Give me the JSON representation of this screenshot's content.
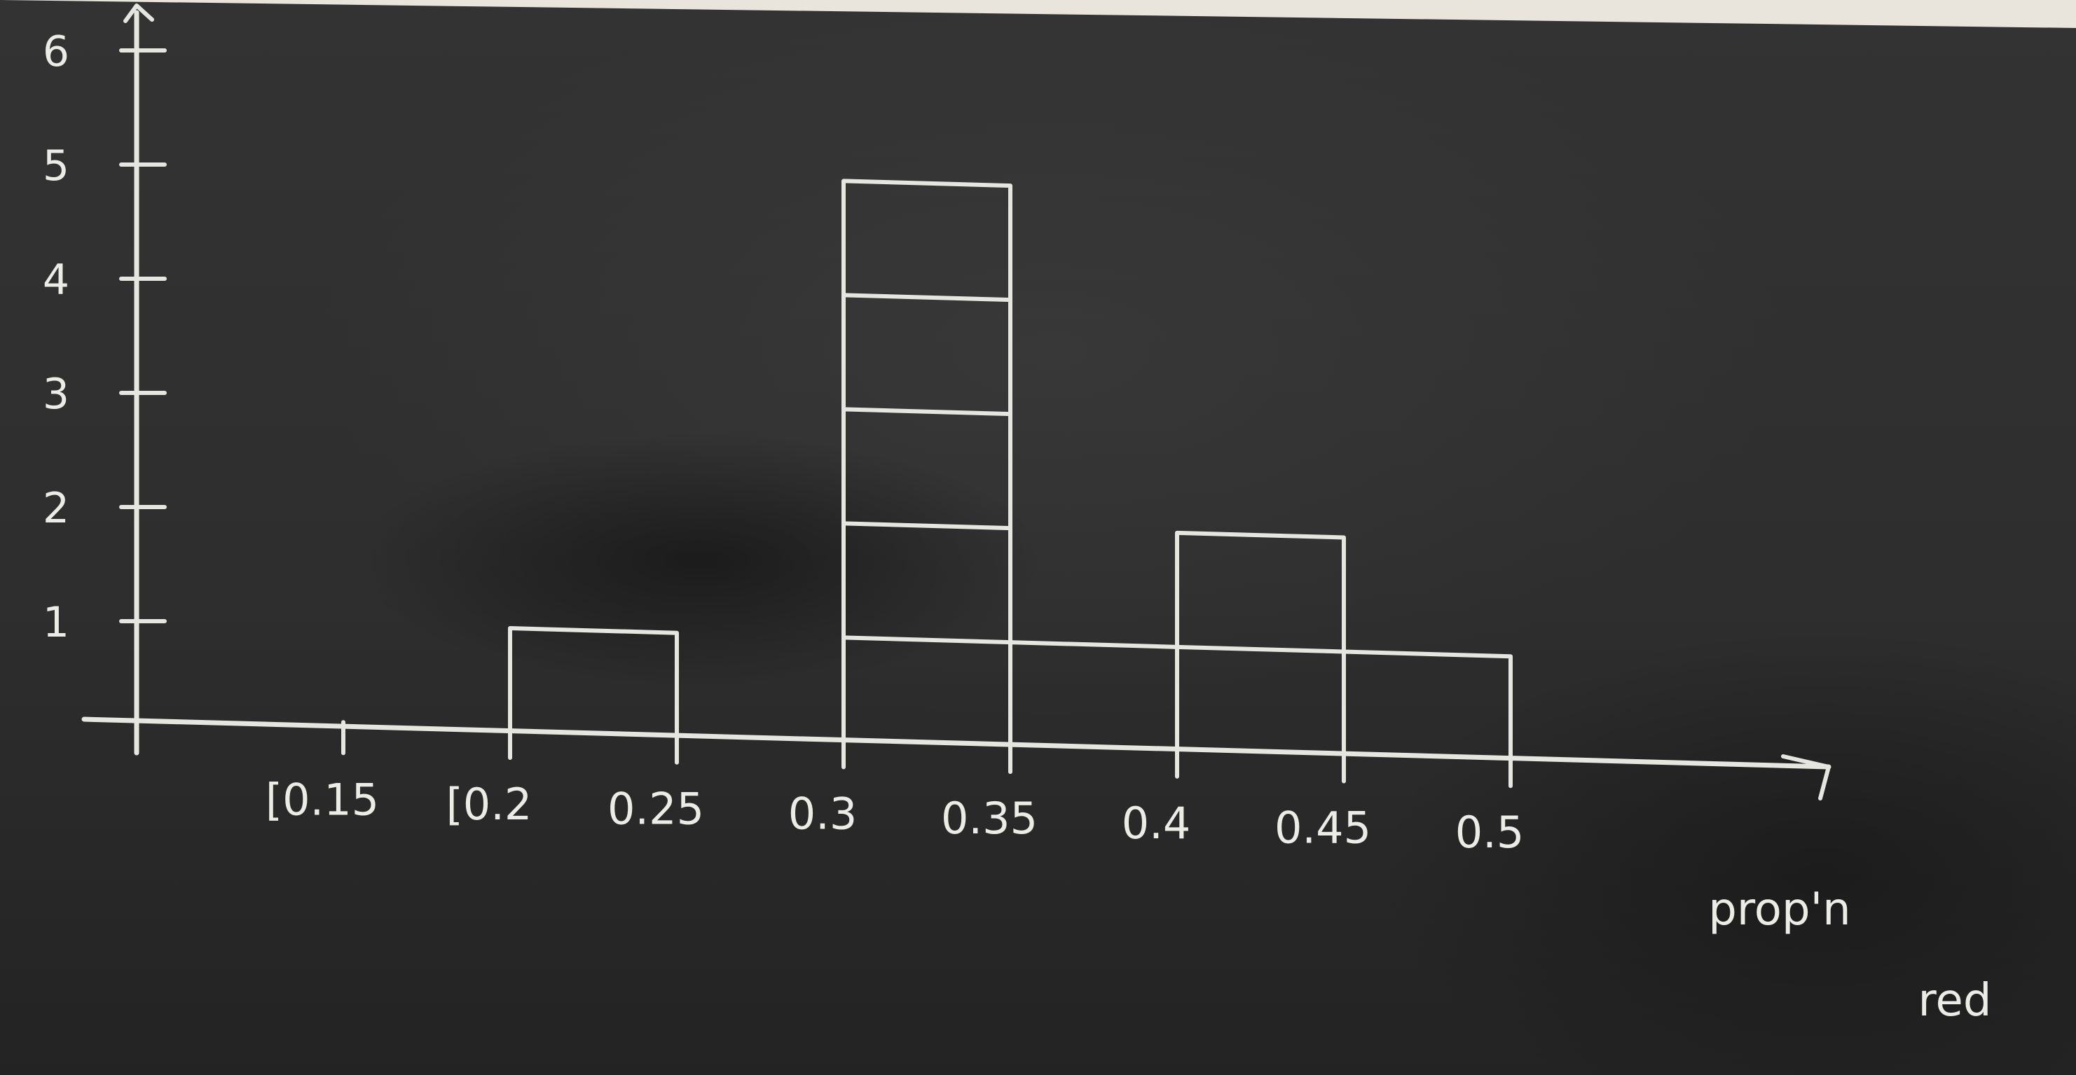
{
  "colors": {
    "board": "#2b2b2b",
    "chalk": "#e6e6e0"
  },
  "chart_data": {
    "type": "bar",
    "title": "",
    "xlabel": "prop'n red",
    "ylabel": "",
    "x_tick_labels": [
      "[0.15",
      "[0.2",
      "0.25",
      "0.3",
      "0.35",
      "0.4",
      "0.45",
      "0.5"
    ],
    "y_tick_labels": [
      "1",
      "2",
      "3",
      "4",
      "5",
      "6"
    ],
    "bins": [
      {
        "start": 0.2,
        "end": 0.25,
        "count": 1
      },
      {
        "start": 0.3,
        "end": 0.35,
        "count": 5
      },
      {
        "start": 0.35,
        "end": 0.4,
        "count": 1
      },
      {
        "start": 0.4,
        "end": 0.45,
        "count": 2
      },
      {
        "start": 0.45,
        "end": 0.5,
        "count": 1
      }
    ],
    "xlim": [
      0.1,
      0.55
    ],
    "ylim": [
      0,
      6
    ],
    "stacked_units": true,
    "grid": false
  }
}
